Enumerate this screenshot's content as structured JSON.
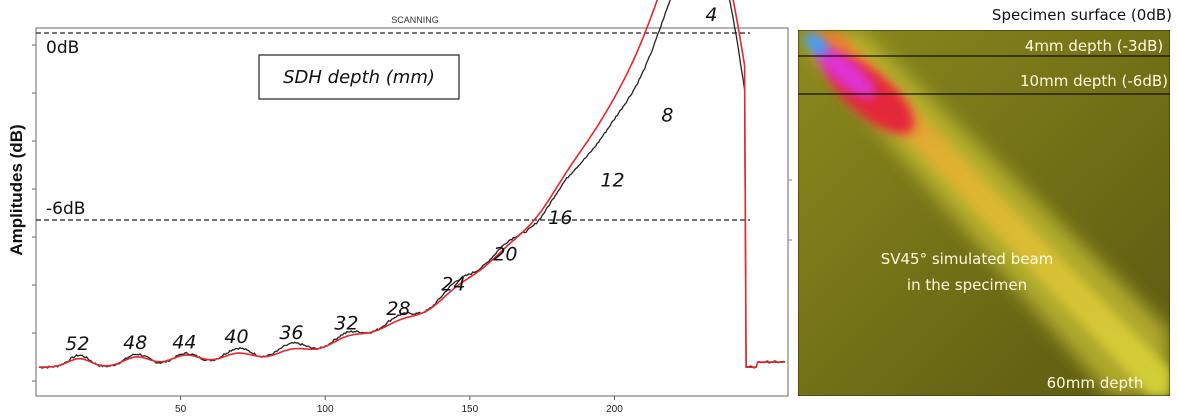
{
  "chart_data": [
    {
      "type": "line",
      "title": "SCANNING",
      "ylabel": "Amplitudes (dB)",
      "xlabel": "",
      "xlim": [
        0,
        260
      ],
      "x_ticks": [
        50,
        100,
        150,
        200
      ],
      "reference_lines": [
        {
          "label": "0dB",
          "level": 0
        },
        {
          "label": "-6dB",
          "level": -6
        }
      ],
      "legend_box": "SDH depth (mm)",
      "peaks": {
        "x": [
          15,
          35,
          52,
          70,
          89,
          108,
          126,
          145,
          163,
          182,
          200,
          219,
          237
        ],
        "depth_labels": [
          "52",
          "48",
          "44",
          "40",
          "36",
          "32",
          "28",
          "24",
          "20",
          "16",
          "12",
          "8",
          "4"
        ],
        "measured_fraction": [
          0.035,
          0.038,
          0.04,
          0.055,
          0.068,
          0.095,
          0.138,
          0.21,
          0.298,
          0.405,
          0.515,
          0.705,
          1.0
        ],
        "simulated_fraction": [
          0.025,
          0.03,
          0.035,
          0.04,
          0.05,
          0.08,
          0.115,
          0.178,
          0.257,
          0.373,
          0.495,
          0.695,
          1.0
        ]
      },
      "series": [
        {
          "name": "measured",
          "color": "#222222"
        },
        {
          "name": "simulated",
          "color": "#e8262b"
        }
      ]
    },
    {
      "type": "heatmap",
      "labels": {
        "surface": "Specimen surface (0dB)",
        "depth4": "4mm depth (-3dB)",
        "depth10": "10mm depth (-6dB)",
        "beam_line1": "SV45° simulated beam",
        "beam_line2": "in the specimen",
        "bottom": "60mm depth"
      }
    }
  ]
}
